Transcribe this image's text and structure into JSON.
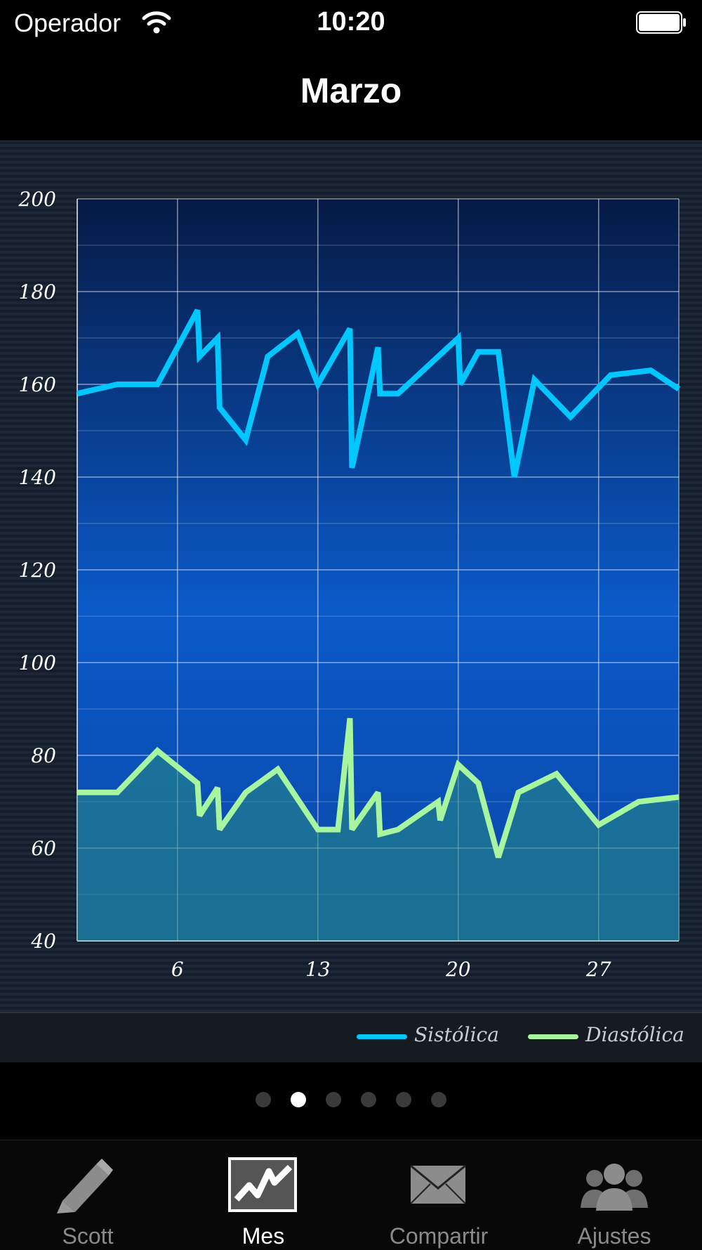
{
  "status_bar": {
    "carrier": "Operador",
    "time": "10:20"
  },
  "nav": {
    "title": "Marzo"
  },
  "chart_data": {
    "type": "area",
    "ylim": [
      40,
      200
    ],
    "yticks": [
      40,
      60,
      80,
      100,
      120,
      140,
      160,
      180,
      200
    ],
    "xlim": [
      1,
      31
    ],
    "xticks": [
      6,
      13,
      20,
      27
    ],
    "grid": true,
    "legend_position": "bottom-right",
    "series": [
      {
        "name": "Sistólica",
        "color": "#00c8ff",
        "points": [
          [
            1,
            158
          ],
          [
            2,
            159
          ],
          [
            3,
            160
          ],
          [
            4,
            160
          ],
          [
            5,
            160
          ],
          [
            6,
            168
          ],
          [
            7,
            176
          ],
          [
            7.1,
            166
          ],
          [
            8,
            170
          ],
          [
            8.1,
            155
          ],
          [
            9.4,
            148
          ],
          [
            10.5,
            166
          ],
          [
            12,
            171
          ],
          [
            13,
            160
          ],
          [
            14.6,
            172
          ],
          [
            14.7,
            142
          ],
          [
            16,
            168
          ],
          [
            16.1,
            158
          ],
          [
            17,
            158
          ],
          [
            20,
            170
          ],
          [
            20.1,
            160
          ],
          [
            21,
            167
          ],
          [
            22,
            167
          ],
          [
            22.8,
            140
          ],
          [
            23.8,
            161
          ],
          [
            25.6,
            153
          ],
          [
            27.6,
            162
          ],
          [
            29.6,
            163
          ],
          [
            31,
            159
          ]
        ]
      },
      {
        "name": "Diastólica",
        "color": "#a8f5a0",
        "points": [
          [
            1,
            72
          ],
          [
            3,
            72
          ],
          [
            5,
            81
          ],
          [
            7,
            74
          ],
          [
            7.1,
            67
          ],
          [
            8,
            73
          ],
          [
            8.1,
            64
          ],
          [
            9.4,
            72
          ],
          [
            11,
            77
          ],
          [
            13,
            64
          ],
          [
            14,
            64
          ],
          [
            14.6,
            88
          ],
          [
            14.7,
            64
          ],
          [
            16,
            72
          ],
          [
            16.1,
            63
          ],
          [
            17,
            64
          ],
          [
            19,
            70
          ],
          [
            19.1,
            66
          ],
          [
            20,
            78
          ],
          [
            21,
            74
          ],
          [
            22,
            58
          ],
          [
            23,
            72
          ],
          [
            24.9,
            76
          ],
          [
            27,
            65
          ],
          [
            29,
            70
          ],
          [
            31,
            71
          ]
        ]
      }
    ]
  },
  "page_dots": {
    "count": 6,
    "active": 1
  },
  "tabs": [
    {
      "label": "Scott",
      "icon": "pencil-icon",
      "active": false
    },
    {
      "label": "Mes",
      "icon": "chart-icon",
      "active": true
    },
    {
      "label": "Compartir",
      "icon": "envelope-icon",
      "active": false
    },
    {
      "label": "Ajustes",
      "icon": "people-icon",
      "active": false
    }
  ]
}
